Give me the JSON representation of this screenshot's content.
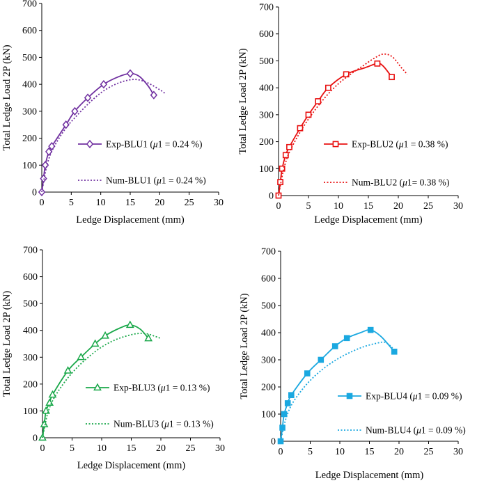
{
  "chart_data": [
    {
      "type": "line",
      "id": "blu1",
      "color": "#7030a0",
      "marker": "diamond",
      "xlabel": "Ledge Displacement (mm)",
      "ylabel": "Total Ledge Load 2P (kN)",
      "xlim": [
        0,
        30
      ],
      "ylim": [
        0,
        700
      ],
      "xticks": [
        "0",
        "5",
        "10",
        "15",
        "20",
        "25",
        "30"
      ],
      "yticks": [
        "0",
        "100",
        "200",
        "300",
        "400",
        "500",
        "600",
        "700"
      ],
      "legend_position": "right-middle",
      "series": [
        {
          "name": "Exp-BLU1",
          "label_pre": "Exp-BLU1 (",
          "mu": "μ",
          "label_post": "1 = 0.24 %)",
          "style": "solid",
          "points": [
            [
              0,
              0
            ],
            [
              0.3,
              50
            ],
            [
              0.6,
              100
            ],
            [
              1.2,
              150
            ],
            [
              1.7,
              170
            ],
            [
              4.1,
              250
            ],
            [
              5.6,
              300
            ],
            [
              7.8,
              350
            ],
            [
              10.5,
              400
            ],
            [
              15.0,
              440
            ],
            [
              19.0,
              360
            ]
          ],
          "curve": [
            [
              0,
              0
            ],
            [
              0.3,
              50
            ],
            [
              0.6,
              100
            ],
            [
              1.2,
              150
            ],
            [
              1.7,
              170
            ],
            [
              4.1,
              250
            ],
            [
              5.6,
              300
            ],
            [
              7.8,
              350
            ],
            [
              10.5,
              400
            ],
            [
              13.0,
              428
            ],
            [
              15.0,
              440
            ],
            [
              16.5,
              430
            ],
            [
              18.0,
              395
            ],
            [
              19.0,
              360
            ]
          ]
        },
        {
          "name": "Num-BLU1",
          "label_pre": "Num-BLU1 (",
          "mu": "μ",
          "label_post": "1  = 0.24 %)",
          "style": "dotted",
          "curve": [
            [
              0,
              0
            ],
            [
              0.5,
              60
            ],
            [
              1.0,
              110
            ],
            [
              2.0,
              165
            ],
            [
              4.0,
              235
            ],
            [
              6.0,
              285
            ],
            [
              8.0,
              330
            ],
            [
              10.0,
              368
            ],
            [
              12.0,
              395
            ],
            [
              14.0,
              412
            ],
            [
              16.0,
              418
            ],
            [
              18.0,
              405
            ],
            [
              20.0,
              380
            ],
            [
              21.0,
              365
            ]
          ]
        }
      ]
    },
    {
      "type": "line",
      "id": "blu2",
      "color": "#e81010",
      "marker": "square-open",
      "xlabel": "Ledge Displacement (mm)",
      "ylabel": "Total Ledge Load 2P (kN)",
      "xlim": [
        0,
        30
      ],
      "ylim": [
        0,
        700
      ],
      "xticks": [
        "0",
        "5",
        "10",
        "15",
        "20",
        "25",
        "30"
      ],
      "yticks": [
        "0",
        "100",
        "200",
        "300",
        "400",
        "500",
        "600",
        "700"
      ],
      "legend_position": "right-middle",
      "series": [
        {
          "name": "Exp-BLU2",
          "label_pre": "Exp-BLU2 (",
          "mu": "μ",
          "label_post": "1 = 0.38 %)",
          "style": "solid",
          "points": [
            [
              0,
              0
            ],
            [
              0.3,
              50
            ],
            [
              0.6,
              100
            ],
            [
              1.2,
              150
            ],
            [
              1.8,
              180
            ],
            [
              3.6,
              250
            ],
            [
              5.0,
              300
            ],
            [
              6.6,
              350
            ],
            [
              8.3,
              400
            ],
            [
              11.3,
              450
            ],
            [
              16.5,
              490
            ],
            [
              18.9,
              440
            ]
          ],
          "curve": [
            [
              0,
              0
            ],
            [
              0.3,
              50
            ],
            [
              0.6,
              100
            ],
            [
              1.2,
              150
            ],
            [
              1.8,
              180
            ],
            [
              3.6,
              250
            ],
            [
              5.0,
              300
            ],
            [
              6.6,
              350
            ],
            [
              8.3,
              400
            ],
            [
              11.3,
              450
            ],
            [
              14.5,
              475
            ],
            [
              16.5,
              490
            ],
            [
              17.5,
              480
            ],
            [
              18.9,
              440
            ]
          ]
        },
        {
          "name": "Num-BLU2",
          "label_pre": "Num-BLU2 (",
          "mu": "μ",
          "label_post": "1= 0.38 %)",
          "style": "dotted",
          "curve": [
            [
              0,
              0
            ],
            [
              0.5,
              60
            ],
            [
              1.0,
              110
            ],
            [
              2.0,
              170
            ],
            [
              4.0,
              250
            ],
            [
              6.0,
              315
            ],
            [
              8.0,
              370
            ],
            [
              10.0,
              415
            ],
            [
              12.0,
              450
            ],
            [
              14.0,
              480
            ],
            [
              16.0,
              510
            ],
            [
              17.5,
              525
            ],
            [
              19.0,
              515
            ],
            [
              20.5,
              475
            ],
            [
              21.5,
              450
            ]
          ]
        }
      ]
    },
    {
      "type": "line",
      "id": "blu3",
      "color": "#1aa84a",
      "marker": "triangle-open",
      "xlabel": "Ledge Displacement (mm)",
      "ylabel": "Total Ledge Load 2P (kN)",
      "xlim": [
        0,
        30
      ],
      "ylim": [
        0,
        700
      ],
      "xticks": [
        "0",
        "5",
        "10",
        "15",
        "20",
        "25",
        "30"
      ],
      "yticks": [
        "0",
        "100",
        "200",
        "300",
        "400",
        "500",
        "600",
        "700"
      ],
      "legend_position": "right-middle",
      "series": [
        {
          "name": "Exp-BLU3",
          "label_pre": "Exp-BLU3 (",
          "mu": "μ",
          "label_post": "1 = 0.13 %)",
          "style": "solid",
          "points": [
            [
              0,
              0
            ],
            [
              0.3,
              50
            ],
            [
              0.6,
              100
            ],
            [
              1.2,
              130
            ],
            [
              1.7,
              160
            ],
            [
              4.3,
              250
            ],
            [
              6.5,
              300
            ],
            [
              8.9,
              350
            ],
            [
              10.6,
              380
            ],
            [
              14.8,
              420
            ],
            [
              17.9,
              370
            ]
          ],
          "curve": [
            [
              0,
              0
            ],
            [
              0.3,
              50
            ],
            [
              0.6,
              100
            ],
            [
              1.2,
              130
            ],
            [
              1.7,
              160
            ],
            [
              4.3,
              250
            ],
            [
              6.5,
              300
            ],
            [
              8.9,
              350
            ],
            [
              10.6,
              380
            ],
            [
              13.0,
              408
            ],
            [
              14.8,
              420
            ],
            [
              16.5,
              405
            ],
            [
              17.9,
              370
            ]
          ]
        },
        {
          "name": "Num-BLU3",
          "label_pre": "Num-BLU3 (",
          "mu": "μ",
          "label_post": "1 = 0.13 %)",
          "style": "dotted",
          "curve": [
            [
              0,
              0
            ],
            [
              0.5,
              55
            ],
            [
              1.0,
              100
            ],
            [
              2.0,
              150
            ],
            [
              4.0,
              215
            ],
            [
              6.0,
              265
            ],
            [
              8.0,
              305
            ],
            [
              10.0,
              338
            ],
            [
              12.0,
              362
            ],
            [
              14.0,
              378
            ],
            [
              16.0,
              388
            ],
            [
              17.5,
              388
            ],
            [
              19.0,
              378
            ],
            [
              20.0,
              370
            ]
          ]
        }
      ]
    },
    {
      "type": "line",
      "id": "blu4",
      "color": "#1aa8e0",
      "marker": "square-filled",
      "xlabel": "Ledge Displacement (mm)",
      "ylabel": "Total Ledge Load 2P (kN)",
      "xlim": [
        0,
        30
      ],
      "ylim": [
        0,
        700
      ],
      "xticks": [
        "0",
        "5",
        "10",
        "15",
        "20",
        "25",
        "30"
      ],
      "yticks": [
        "0",
        "100",
        "200",
        "300",
        "400",
        "500",
        "600",
        "700"
      ],
      "legend_position": "right-middle",
      "series": [
        {
          "name": "Exp-BLU4",
          "label_pre": "Exp-BLU4 (",
          "mu": "μ",
          "label_post": "1 = 0.09 %)",
          "style": "solid",
          "points": [
            [
              0,
              0
            ],
            [
              0.3,
              50
            ],
            [
              0.6,
              100
            ],
            [
              1.2,
              140
            ],
            [
              1.8,
              170
            ],
            [
              4.5,
              250
            ],
            [
              6.8,
              300
            ],
            [
              9.2,
              350
            ],
            [
              11.2,
              380
            ],
            [
              15.2,
              410
            ],
            [
              19.2,
              330
            ]
          ],
          "curve": [
            [
              0,
              0
            ],
            [
              0.3,
              50
            ],
            [
              0.6,
              100
            ],
            [
              1.2,
              140
            ],
            [
              1.8,
              170
            ],
            [
              4.5,
              250
            ],
            [
              6.8,
              300
            ],
            [
              9.2,
              350
            ],
            [
              11.2,
              380
            ],
            [
              13.5,
              400
            ],
            [
              15.2,
              410
            ],
            [
              17.0,
              385
            ],
            [
              19.2,
              330
            ]
          ]
        },
        {
          "name": "Num-BLU4",
          "label_pre": "Num-BLU4 (",
          "mu": "μ",
          "label_post": "1 = 0.09 %)",
          "style": "dotted",
          "curve": [
            [
              0,
              0
            ],
            [
              0.5,
              50
            ],
            [
              1.0,
              90
            ],
            [
              2.0,
              140
            ],
            [
              4.0,
              200
            ],
            [
              6.0,
              245
            ],
            [
              8.0,
              280
            ],
            [
              10.0,
              308
            ],
            [
              12.0,
              330
            ],
            [
              14.0,
              348
            ],
            [
              16.0,
              360
            ],
            [
              17.5,
              365
            ],
            [
              18.5,
              352
            ],
            [
              19.2,
              335
            ]
          ]
        }
      ]
    }
  ]
}
